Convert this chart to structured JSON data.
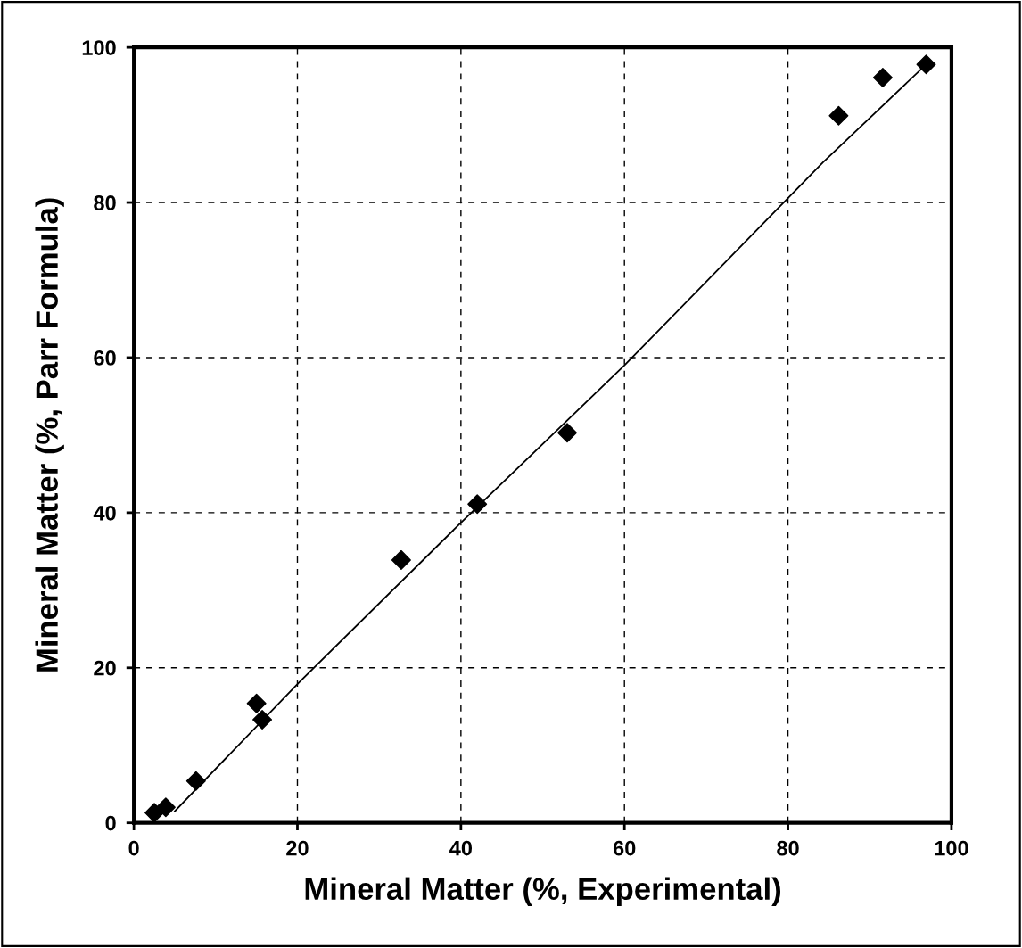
{
  "chart_data": {
    "type": "scatter",
    "xlabel": "Mineral Matter (%, Experimental)",
    "ylabel": "Mineral Matter (%, Parr Formula)",
    "xlim": [
      0,
      100
    ],
    "ylim": [
      0,
      100
    ],
    "xticks": [
      0,
      20,
      40,
      60,
      80,
      100
    ],
    "yticks": [
      0,
      20,
      40,
      60,
      80,
      100
    ],
    "grid": true,
    "marker": "diamond",
    "series": [
      {
        "color": "#000000",
        "x": [
          2.5,
          3.9,
          7.6,
          15.0,
          15.7,
          32.7,
          42.0,
          53.0,
          86.2,
          91.6,
          96.9
        ],
        "values": [
          1.3,
          2.0,
          5.4,
          15.4,
          13.3,
          33.9,
          41.1,
          50.3,
          91.2,
          96.1,
          97.8
        ]
      },
      {
        "type": "line",
        "color": "#000000",
        "marker": "none",
        "line_style": "solid",
        "x": [
          5.0,
          20,
          39.8,
          60,
          84.3,
          96.3
        ],
        "values": [
          1.5,
          17.9,
          38.5,
          59.0,
          85.2,
          97.2
        ]
      }
    ]
  }
}
